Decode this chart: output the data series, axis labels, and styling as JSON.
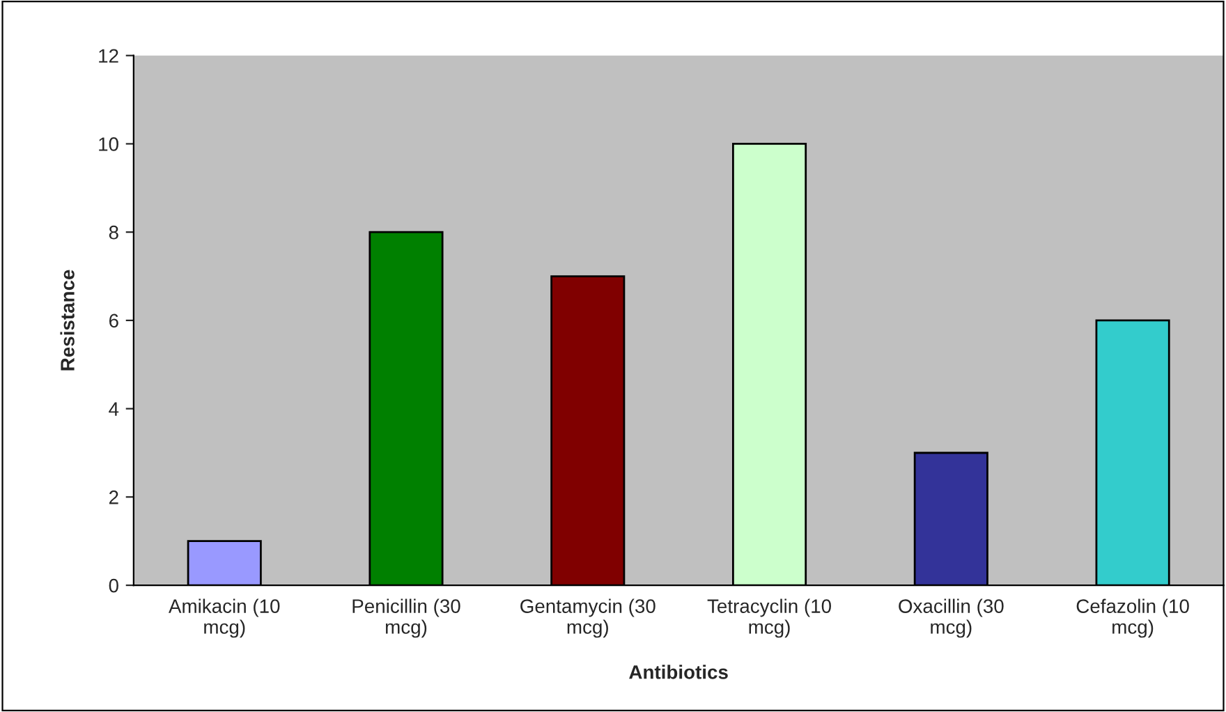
{
  "chart_data": {
    "type": "bar",
    "xlabel": "Antibiotics",
    "ylabel": "Resistance",
    "categories": [
      "Amikacin (10 mcg)",
      "Penicillin (30 mcg)",
      "Gentamycin (30 mcg)",
      "Tetracyclin (10 mcg)",
      "Oxacillin (30 mcg)",
      "Cefazolin (10 mcg)"
    ],
    "values": [
      1,
      8,
      7,
      10,
      3,
      6
    ],
    "colors": [
      "#9999ff",
      "#008000",
      "#800000",
      "#ccffcc",
      "#333399",
      "#33cccc"
    ],
    "ylim": [
      0,
      12
    ],
    "yticks": [
      0,
      2,
      4,
      6,
      8,
      10,
      12
    ],
    "grid": false,
    "legend": false
  }
}
